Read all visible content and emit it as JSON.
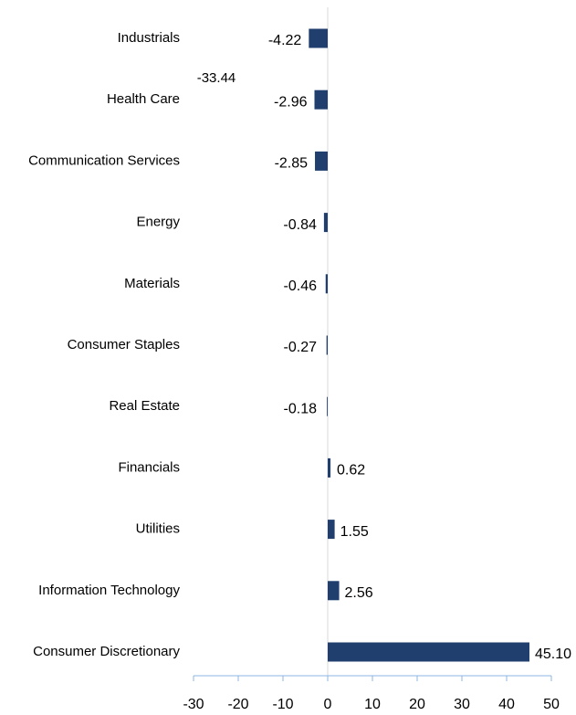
{
  "chart_data": {
    "type": "barh",
    "categories": [
      "Industrials",
      "Health Care",
      "Communication Services",
      "Energy",
      "Materials",
      "Consumer Staples",
      "Real Estate",
      "Financials",
      "Utilities",
      "Information Technology",
      "Consumer Discretionary"
    ],
    "values": [
      -4.22,
      -2.96,
      -2.85,
      -0.84,
      -0.46,
      -0.27,
      -0.18,
      0.62,
      1.55,
      2.56,
      45.1
    ],
    "value_labels": [
      "-4.22",
      "-2.96",
      "-2.85",
      "-0.84",
      "-0.46",
      "-0.27",
      "-0.18",
      "0.62",
      "1.55",
      "2.56",
      "45.10"
    ],
    "color": "#203f6e",
    "xlim": [
      -30,
      50
    ],
    "xticks": [
      -30,
      -20,
      -10,
      0,
      10,
      20,
      30,
      40,
      50
    ],
    "annotations": [
      "-33.44"
    ]
  }
}
